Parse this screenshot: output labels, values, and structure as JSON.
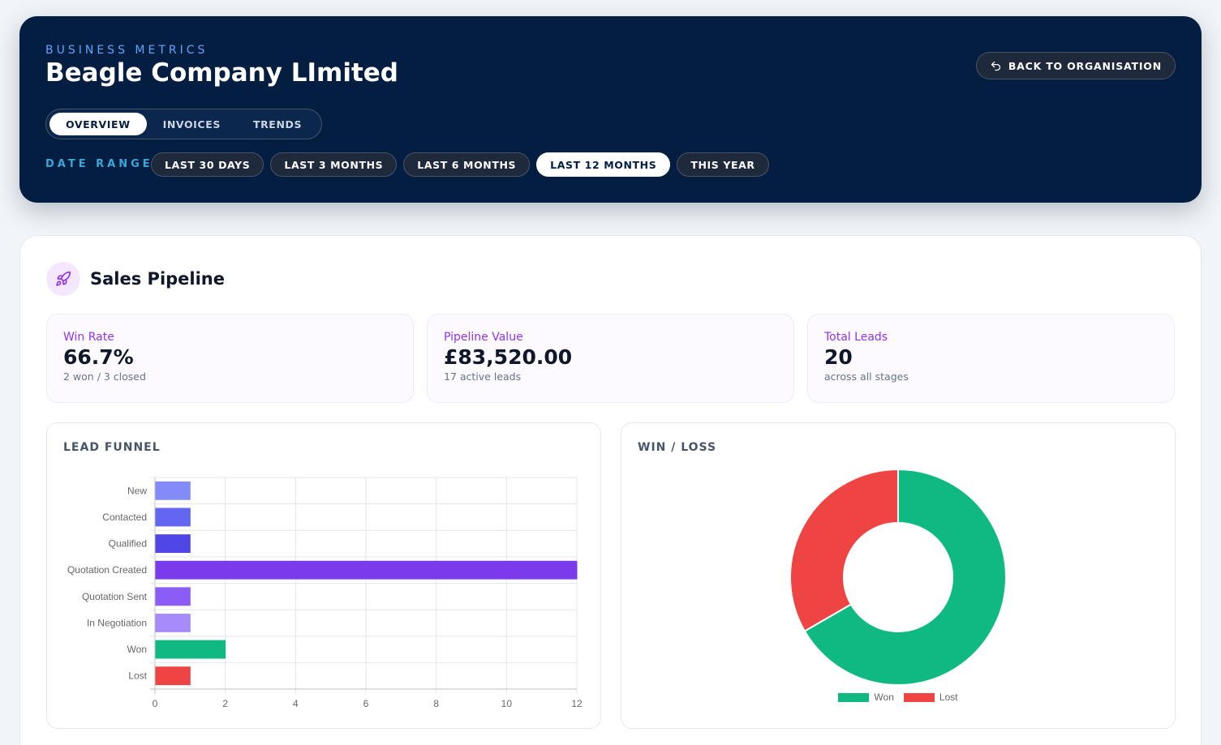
{
  "header": {
    "eyebrow": "BUSINESS METRICS",
    "company": "Beagle Company LImited",
    "back_label": "BACK TO ORGANISATION",
    "tabs": [
      {
        "label": "OVERVIEW",
        "active": true
      },
      {
        "label": "INVOICES",
        "active": false
      },
      {
        "label": "TRENDS",
        "active": false
      }
    ],
    "date_range_label": "DATE RANGE",
    "ranges": [
      {
        "label": "LAST 30 DAYS",
        "active": false
      },
      {
        "label": "LAST 3 MONTHS",
        "active": false
      },
      {
        "label": "LAST 6 MONTHS",
        "active": false
      },
      {
        "label": "LAST 12 MONTHS",
        "active": true
      },
      {
        "label": "THIS YEAR",
        "active": false
      }
    ]
  },
  "pipeline": {
    "title": "Sales Pipeline",
    "icon": "rocket-icon",
    "stats": [
      {
        "label": "Win Rate",
        "value": "66.7%",
        "sub": "2 won / 3 closed"
      },
      {
        "label": "Pipeline Value",
        "value": "£83,520.00",
        "sub": "17 active leads"
      },
      {
        "label": "Total Leads",
        "value": "20",
        "sub": "across all stages"
      }
    ],
    "funnel_title": "LEAD FUNNEL",
    "winloss_title": "WIN / LOSS"
  },
  "colors": {
    "accent": "#9333ea",
    "navy": "#041e42",
    "won": "#10b981",
    "lost": "#ef4444"
  },
  "chart_data": [
    {
      "type": "bar",
      "orientation": "horizontal",
      "categories": [
        "New",
        "Contacted",
        "Qualified",
        "Quotation Created",
        "Quotation Sent",
        "In Negotiation",
        "Won",
        "Lost"
      ],
      "values": [
        1,
        1,
        1,
        12,
        1,
        1,
        2,
        1
      ],
      "colors": [
        "#818cf8",
        "#6366f1",
        "#4f46e5",
        "#7c3aed",
        "#8b5cf6",
        "#a78bfa",
        "#10b981",
        "#ef4444"
      ],
      "xlim": [
        0,
        12
      ],
      "xticks": [
        0,
        2,
        4,
        6,
        8,
        10,
        12
      ],
      "grid": true
    },
    {
      "type": "pie",
      "variant": "doughnut",
      "labels": [
        "Won",
        "Lost"
      ],
      "values": [
        2,
        1
      ],
      "colors": [
        "#10b981",
        "#ef4444"
      ],
      "legend": "bottom"
    }
  ]
}
